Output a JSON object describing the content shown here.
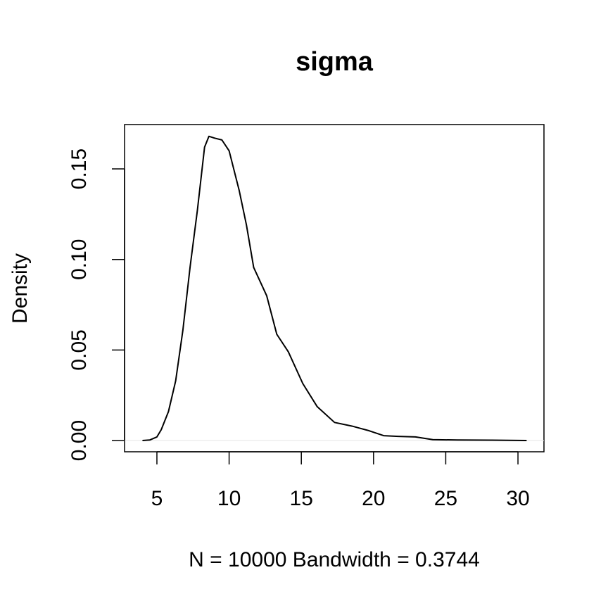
{
  "chart_data": {
    "type": "line",
    "title": "sigma",
    "xlabel": "N = 10000   Bandwidth = 0.3744",
    "ylabel": "Density",
    "x": [
      4,
      4.5,
      5,
      5.3,
      5.8,
      6.3,
      6.8,
      7.3,
      7.8,
      8.3,
      8.6,
      9.0,
      9.5,
      10,
      10.7,
      11.2,
      11.7,
      12.6,
      13.3,
      14.1,
      15.1,
      16.1,
      17.3,
      18.5,
      19.7,
      20.7,
      21.7,
      22.9,
      24.1,
      25.8,
      28.2,
      30.6
    ],
    "series": [
      {
        "name": "density",
        "color": "#000000",
        "values": [
          0,
          0.0003,
          0.002,
          0.006,
          0.016,
          0.033,
          0.061,
          0.096,
          0.127,
          0.162,
          0.168,
          0.167,
          0.166,
          0.16,
          0.138,
          0.119,
          0.0956,
          0.08,
          0.0587,
          0.049,
          0.0315,
          0.0187,
          0.01,
          0.008,
          0.0054,
          0.0027,
          0.0023,
          0.002,
          0.0005,
          0.0003,
          0.0002,
          0
        ]
      }
    ],
    "xlim": [
      2.76,
      31.8
    ],
    "ylim": [
      -0.0062,
      0.1745
    ],
    "xticks": [
      5,
      10,
      15,
      20,
      25,
      30
    ],
    "yticks": [
      {
        "value": 0,
        "label": "0.00"
      },
      {
        "value": 0.05,
        "label": "0.05"
      },
      {
        "value": 0.1,
        "label": "0.10"
      },
      {
        "value": 0.15,
        "label": "0.15"
      }
    ],
    "hline": 0,
    "hline_color": "#e6e6e6"
  }
}
